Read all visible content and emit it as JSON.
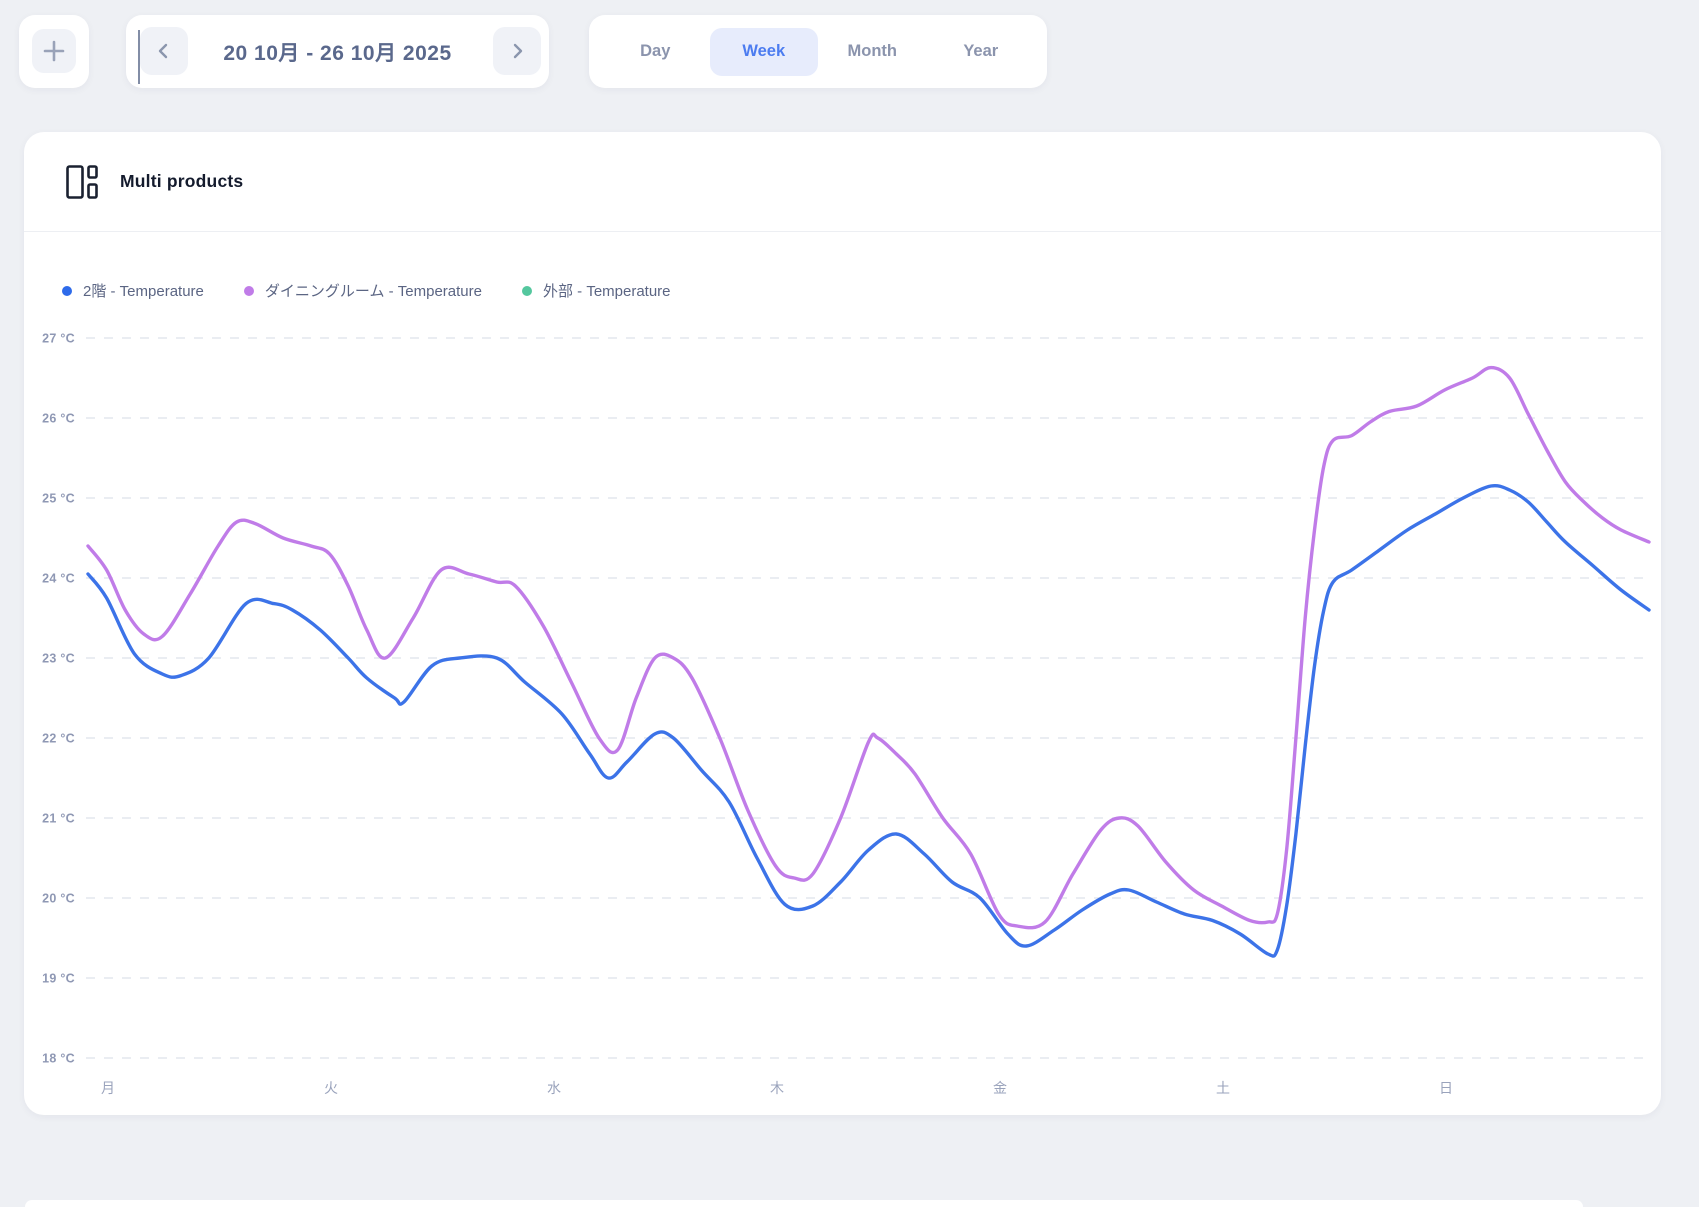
{
  "topbar": {
    "add_button_label": "+",
    "date_range": "20 10月 - 26 10月 2025",
    "prev_icon": "chevron-left",
    "next_icon": "chevron-right",
    "view_tabs": [
      {
        "label": "Day",
        "selected": false
      },
      {
        "label": "Week",
        "selected": true
      },
      {
        "label": "Month",
        "selected": false
      },
      {
        "label": "Year",
        "selected": false
      }
    ]
  },
  "card": {
    "title": "Multi products",
    "title_icon": "multi-products-layout-icon"
  },
  "legend": [
    {
      "label": "2階 - Temperature",
      "color": "#2e6bea"
    },
    {
      "label": "ダイニングルーム - Temperature",
      "color": "#c07ce8"
    },
    {
      "label": "外部 - Temperature",
      "color": "#54c79e"
    }
  ],
  "chart_data": {
    "type": "line",
    "title": "Multi products",
    "unit": "°C",
    "ylim": [
      18,
      27
    ],
    "y_ticks": [
      "27 °C",
      "26 °C",
      "25 °C",
      "24 °C",
      "23 °C",
      "22 °C",
      "21 °C",
      "20 °C",
      "19 °C",
      "18 °C"
    ],
    "x_categories": [
      "月",
      "火",
      "水",
      "木",
      "金",
      "土",
      "日"
    ],
    "x_unit": "hours (0-168, Mon-Sun)",
    "grid": "dashed-horizontal",
    "legend_position": "top-left",
    "series": [
      {
        "name": "2階 - Temperature",
        "color": "#3c73e8",
        "points": [
          [
            0,
            24.05
          ],
          [
            2,
            23.75
          ],
          [
            5,
            23.05
          ],
          [
            8,
            22.8
          ],
          [
            10,
            22.78
          ],
          [
            13,
            23.0
          ],
          [
            17,
            23.68
          ],
          [
            20,
            23.68
          ],
          [
            22,
            23.6
          ],
          [
            25,
            23.35
          ],
          [
            28,
            23.0
          ],
          [
            30,
            22.75
          ],
          [
            33,
            22.5
          ],
          [
            34,
            22.45
          ],
          [
            37,
            22.9
          ],
          [
            40,
            23.0
          ],
          [
            44,
            23.0
          ],
          [
            47,
            22.7
          ],
          [
            51,
            22.3
          ],
          [
            54,
            21.8
          ],
          [
            56,
            21.5
          ],
          [
            58,
            21.7
          ],
          [
            61,
            22.05
          ],
          [
            63,
            22.0
          ],
          [
            66,
            21.6
          ],
          [
            69,
            21.2
          ],
          [
            72,
            20.5
          ],
          [
            75,
            19.92
          ],
          [
            78,
            19.9
          ],
          [
            81,
            20.2
          ],
          [
            84,
            20.6
          ],
          [
            87,
            20.8
          ],
          [
            90,
            20.55
          ],
          [
            93,
            20.2
          ],
          [
            96,
            20.0
          ],
          [
            99,
            19.55
          ],
          [
            101,
            19.4
          ],
          [
            104,
            19.6
          ],
          [
            107,
            19.85
          ],
          [
            110,
            20.05
          ],
          [
            112,
            20.1
          ],
          [
            115,
            19.95
          ],
          [
            118,
            19.8
          ],
          [
            121,
            19.72
          ],
          [
            124,
            19.55
          ],
          [
            127,
            19.3
          ],
          [
            128,
            19.35
          ],
          [
            129,
            19.9
          ],
          [
            130,
            20.8
          ],
          [
            131,
            21.9
          ],
          [
            132,
            22.9
          ],
          [
            133,
            23.6
          ],
          [
            134,
            23.95
          ],
          [
            136,
            24.1
          ],
          [
            139,
            24.35
          ],
          [
            142,
            24.6
          ],
          [
            145,
            24.8
          ],
          [
            148,
            25.0
          ],
          [
            151,
            25.15
          ],
          [
            153,
            25.1
          ],
          [
            155,
            24.95
          ],
          [
            157,
            24.7
          ],
          [
            159,
            24.45
          ],
          [
            162,
            24.15
          ],
          [
            165,
            23.85
          ],
          [
            168,
            23.6
          ]
        ]
      },
      {
        "name": "ダイニングルーム - Temperature",
        "color": "#c07ce8",
        "points": [
          [
            0,
            24.4
          ],
          [
            2,
            24.1
          ],
          [
            4,
            23.6
          ],
          [
            6,
            23.3
          ],
          [
            8,
            23.27
          ],
          [
            11,
            23.8
          ],
          [
            14,
            24.4
          ],
          [
            16,
            24.7
          ],
          [
            18,
            24.68
          ],
          [
            21,
            24.5
          ],
          [
            24,
            24.4
          ],
          [
            26,
            24.3
          ],
          [
            28,
            23.9
          ],
          [
            30,
            23.35
          ],
          [
            32,
            23.0
          ],
          [
            35,
            23.5
          ],
          [
            38,
            24.1
          ],
          [
            41,
            24.05
          ],
          [
            44,
            23.95
          ],
          [
            46,
            23.9
          ],
          [
            49,
            23.4
          ],
          [
            52,
            22.7
          ],
          [
            55,
            22.0
          ],
          [
            57,
            21.85
          ],
          [
            59,
            22.5
          ],
          [
            61,
            23.0
          ],
          [
            63,
            23.0
          ],
          [
            65,
            22.75
          ],
          [
            68,
            22.0
          ],
          [
            71,
            21.1
          ],
          [
            74,
            20.4
          ],
          [
            76,
            20.25
          ],
          [
            78,
            20.3
          ],
          [
            81,
            21.0
          ],
          [
            84,
            21.95
          ],
          [
            85,
            22.0
          ],
          [
            87,
            21.8
          ],
          [
            89,
            21.55
          ],
          [
            92,
            21.0
          ],
          [
            95,
            20.55
          ],
          [
            98,
            19.8
          ],
          [
            100,
            19.65
          ],
          [
            103,
            19.7
          ],
          [
            106,
            20.3
          ],
          [
            109,
            20.85
          ],
          [
            111,
            21.0
          ],
          [
            113,
            20.9
          ],
          [
            116,
            20.45
          ],
          [
            119,
            20.1
          ],
          [
            122,
            19.9
          ],
          [
            125,
            19.72
          ],
          [
            127,
            19.7
          ],
          [
            128,
            19.8
          ],
          [
            129,
            20.6
          ],
          [
            130,
            22.0
          ],
          [
            131,
            23.5
          ],
          [
            132,
            24.6
          ],
          [
            133,
            25.4
          ],
          [
            134,
            25.72
          ],
          [
            136,
            25.78
          ],
          [
            138,
            25.95
          ],
          [
            140,
            26.08
          ],
          [
            143,
            26.15
          ],
          [
            146,
            26.35
          ],
          [
            149,
            26.5
          ],
          [
            151,
            26.63
          ],
          [
            153,
            26.5
          ],
          [
            155,
            26.05
          ],
          [
            157,
            25.6
          ],
          [
            159,
            25.2
          ],
          [
            161,
            24.95
          ],
          [
            163,
            24.75
          ],
          [
            165,
            24.6
          ],
          [
            168,
            24.45
          ]
        ]
      },
      {
        "name": "外部 - Temperature",
        "color": "#54c79e",
        "points": []
      }
    ]
  }
}
